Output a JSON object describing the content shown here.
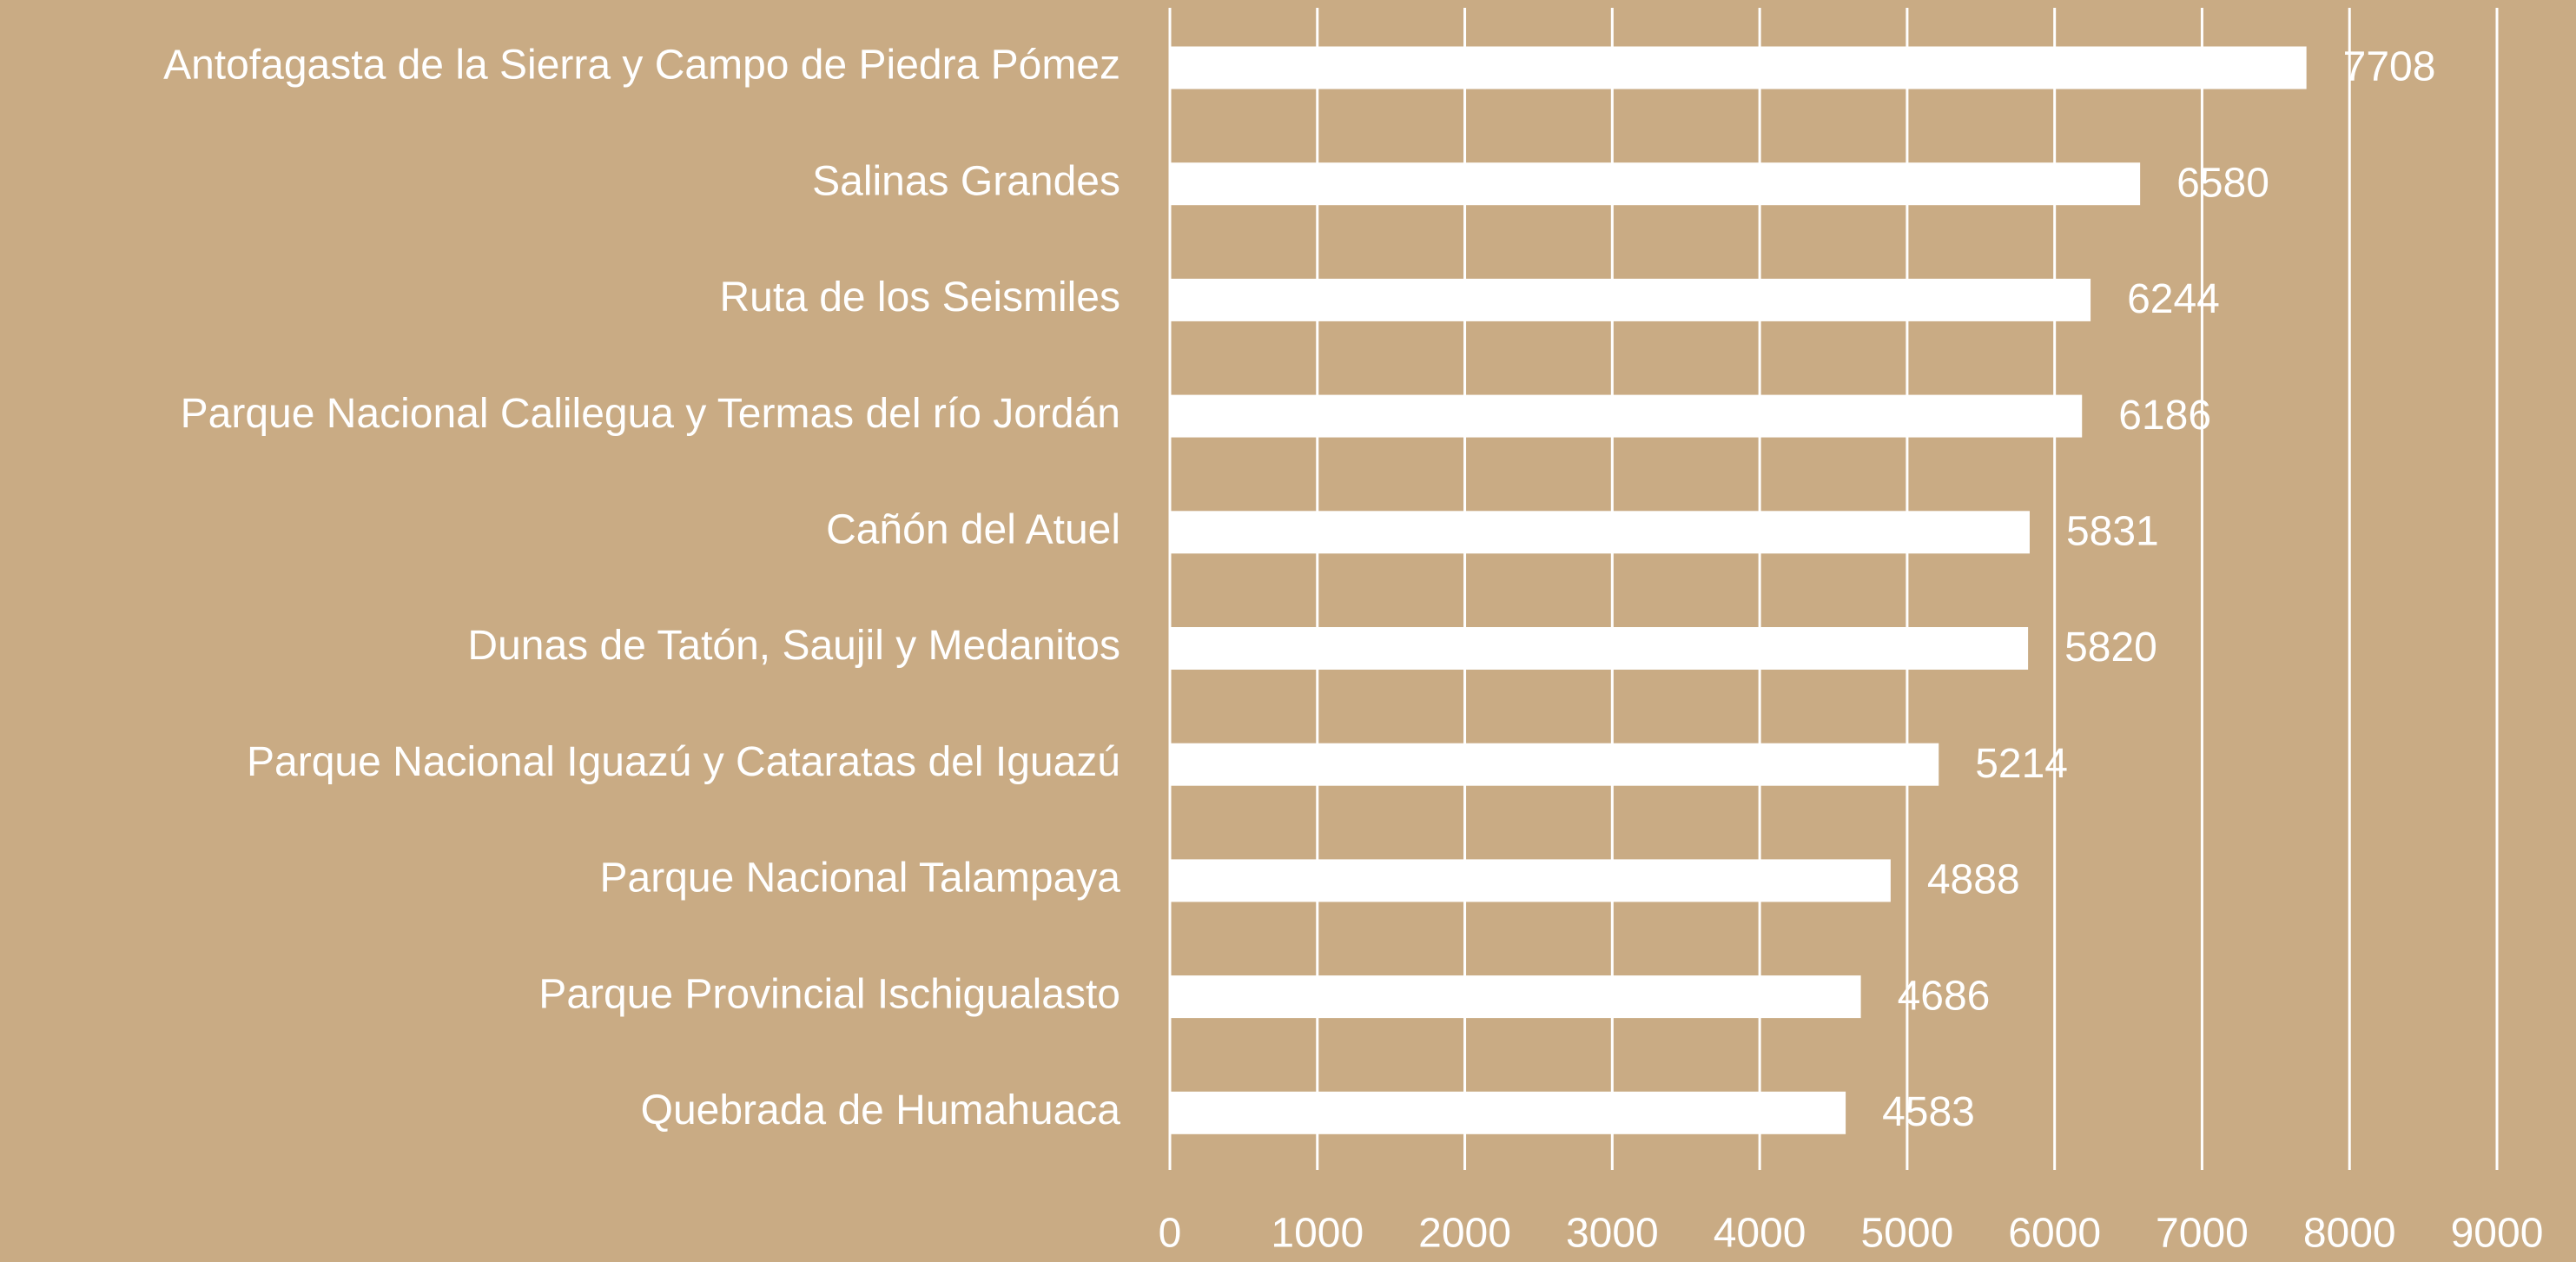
{
  "chart_data": {
    "type": "barh",
    "categories": [
      "Antofagasta de la Sierra y Campo de Piedra Pómez",
      "Salinas Grandes",
      "Ruta de los Seismiles",
      "Parque Nacional Calilegua y Termas del río Jordán",
      "Cañón del Atuel",
      "Dunas de Tatón, Saujil y Medanitos",
      "Parque Nacional Iguazú y Cataratas del Iguazú",
      "Parque Nacional Talampaya",
      "Parque Provincial Ischigualasto",
      "Quebrada de Humahuaca"
    ],
    "values": [
      7708,
      6580,
      6244,
      6186,
      5831,
      5820,
      5214,
      4888,
      4686,
      4583
    ],
    "color": "#ffffff",
    "xlim": [
      0,
      9000
    ],
    "xticks": [
      0,
      1000,
      2000,
      3000,
      4000,
      5000,
      6000,
      7000,
      8000,
      9000
    ],
    "grid": true
  }
}
